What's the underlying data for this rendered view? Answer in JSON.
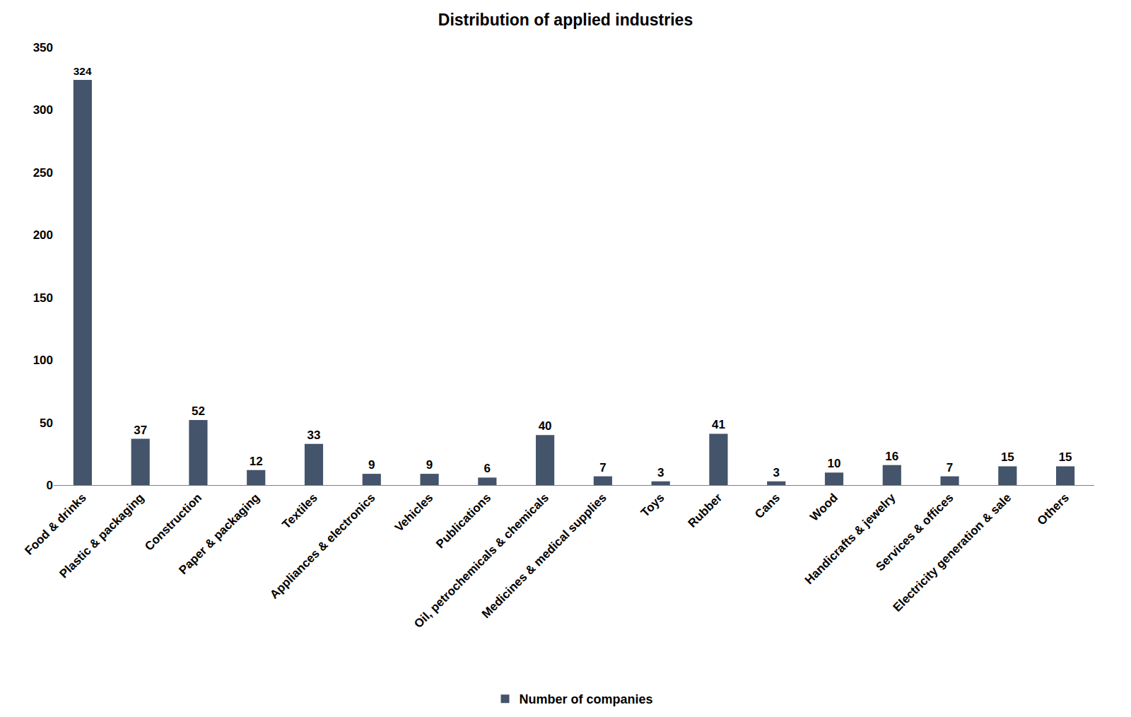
{
  "chart_data": {
    "type": "bar",
    "title": "Distribution of applied industries",
    "categories": [
      "Food & drinks",
      "Plastic & packaging",
      "Construction",
      "Paper & packaging",
      "Textiles",
      "Appliances & electronics",
      "Vehicles",
      "Publications",
      "Oil, petrochemicals & chemicals",
      "Medicines & medical supplies",
      "Toys",
      "Rubber",
      "Cans",
      "Wood",
      "Handicrafts & jewelry",
      "Services & offices",
      "Electricity generation & sale",
      "Others"
    ],
    "series": [
      {
        "name": "Number of companies",
        "color": "#44546a",
        "values": [
          324,
          37,
          52,
          12,
          33,
          9,
          9,
          6,
          40,
          7,
          3,
          41,
          3,
          10,
          16,
          7,
          15,
          15
        ]
      }
    ],
    "ylim": [
      0,
      350
    ],
    "yticks": [
      0,
      50,
      100,
      150,
      200,
      250,
      300,
      350
    ],
    "grid": false,
    "legend": "bottom",
    "data_labels": true
  }
}
